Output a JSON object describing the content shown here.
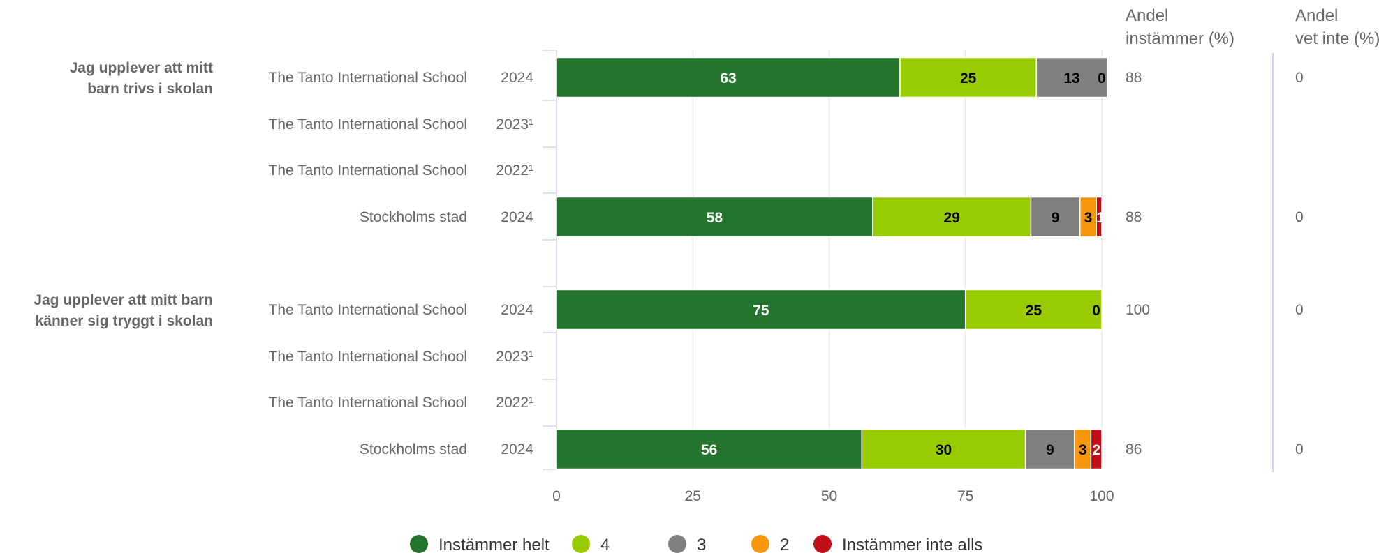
{
  "chart_data": {
    "type": "bar",
    "orientation": "horizontal",
    "stacked": true,
    "xlim": [
      0,
      100
    ],
    "xticks": [
      "0",
      "25",
      "50",
      "75",
      "100"
    ],
    "grid": true,
    "legend_position": "bottom",
    "columns": {
      "andel_instammer": [
        "Andel",
        "instämmer (%)"
      ],
      "andel_vet_inte": [
        "Andel",
        "vet inte (%)"
      ]
    },
    "series": [
      {
        "name": "Instämmer helt",
        "color": "#26752f"
      },
      {
        "name": "4",
        "color": "#99cc00"
      },
      {
        "name": "3",
        "color": "#808080"
      },
      {
        "name": "2",
        "color": "#f7970e"
      },
      {
        "name": "Instämmer inte alls",
        "color": "#c00f1b"
      }
    ],
    "groups": [
      {
        "question": [
          "Jag upplever att mitt",
          "barn trivs i skolan"
        ],
        "rows": [
          {
            "school": "The Tanto International School",
            "year": "2024",
            "values": [
              63,
              25,
              13,
              0
            ],
            "labels": [
              "63",
              "25",
              "13",
              "0"
            ],
            "andel_instammer": "88",
            "andel_vet_inte": "0"
          },
          {
            "school": "The Tanto International School",
            "year": "2023¹",
            "values": [],
            "labels": [],
            "andel_instammer": "",
            "andel_vet_inte": ""
          },
          {
            "school": "The Tanto International School",
            "year": "2022¹",
            "values": [],
            "labels": [],
            "andel_instammer": "",
            "andel_vet_inte": ""
          },
          {
            "school": "Stockholms stad",
            "year": "2024",
            "values": [
              58,
              29,
              9,
              3,
              1
            ],
            "labels": [
              "58",
              "29",
              "9",
              "3",
              "1"
            ],
            "andel_instammer": "88",
            "andel_vet_inte": "0"
          }
        ]
      },
      {
        "question": [
          "Jag upplever att mitt barn",
          "känner sig tryggt i skolan"
        ],
        "rows": [
          {
            "school": "The Tanto International School",
            "year": "2024",
            "values": [
              75,
              25,
              0
            ],
            "labels": [
              "75",
              "25",
              "0"
            ],
            "andel_instammer": "100",
            "andel_vet_inte": "0"
          },
          {
            "school": "The Tanto International School",
            "year": "2023¹",
            "values": [],
            "labels": [],
            "andel_instammer": "",
            "andel_vet_inte": ""
          },
          {
            "school": "The Tanto International School",
            "year": "2022¹",
            "values": [],
            "labels": [],
            "andel_instammer": "",
            "andel_vet_inte": ""
          },
          {
            "school": "Stockholms stad",
            "year": "2024",
            "values": [
              56,
              30,
              9,
              3,
              2
            ],
            "labels": [
              "56",
              "30",
              "9",
              "3",
              "2"
            ],
            "andel_instammer": "86",
            "andel_vet_inte": "0"
          }
        ]
      }
    ]
  }
}
